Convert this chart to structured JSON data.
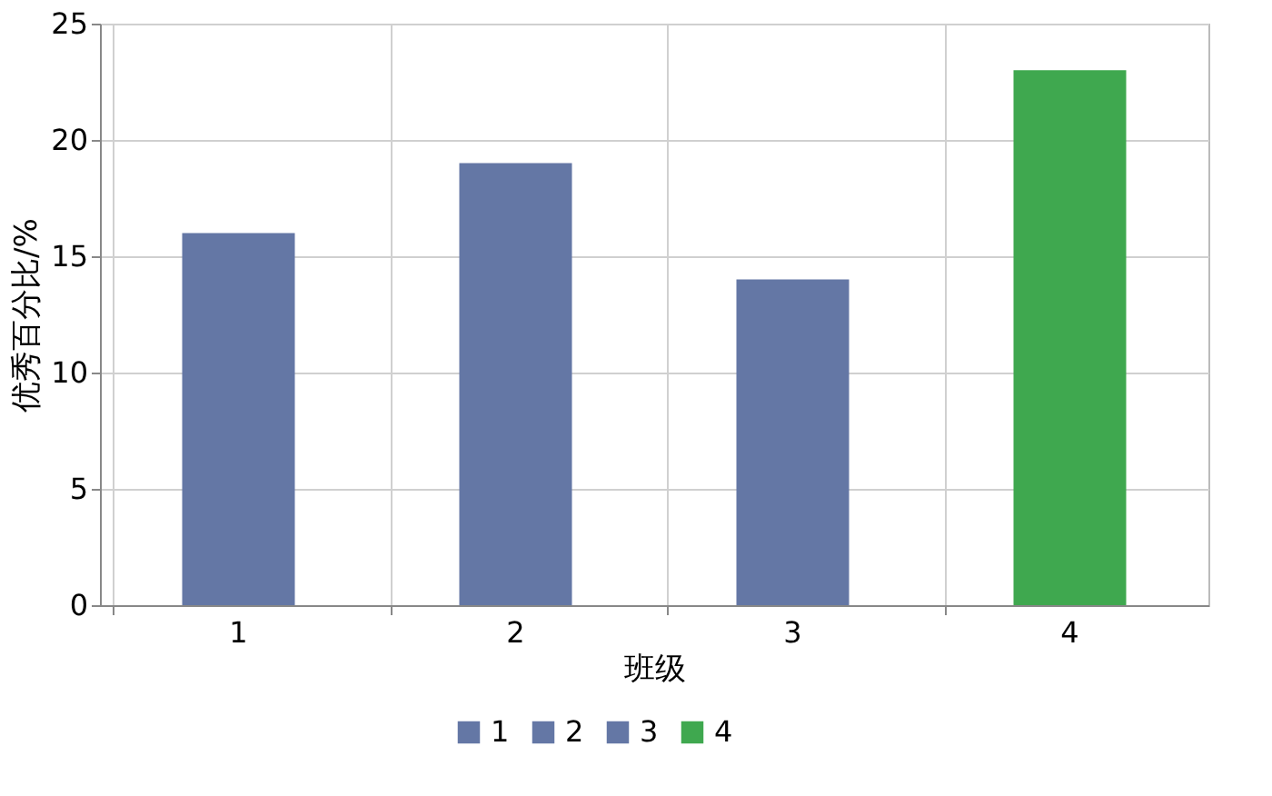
{
  "chart_data": {
    "type": "bar",
    "xlabel": "班级",
    "ylabel": "优秀百分比/%",
    "categories": [
      "1",
      "2",
      "3",
      "4"
    ],
    "series": [
      {
        "name": "1",
        "color": "#6477a5",
        "values": [
          16,
          null,
          null,
          null
        ]
      },
      {
        "name": "2",
        "color": "#6477a5",
        "values": [
          null,
          19,
          null,
          null
        ]
      },
      {
        "name": "3",
        "color": "#6477a5",
        "values": [
          null,
          null,
          14,
          null
        ]
      },
      {
        "name": "4",
        "color": "#3fa84f",
        "values": [
          null,
          null,
          null,
          23
        ]
      }
    ],
    "ylim": [
      0,
      25
    ],
    "yticks": [
      0,
      5,
      10,
      15,
      20,
      25
    ],
    "grid": true,
    "legend": "bottom"
  }
}
